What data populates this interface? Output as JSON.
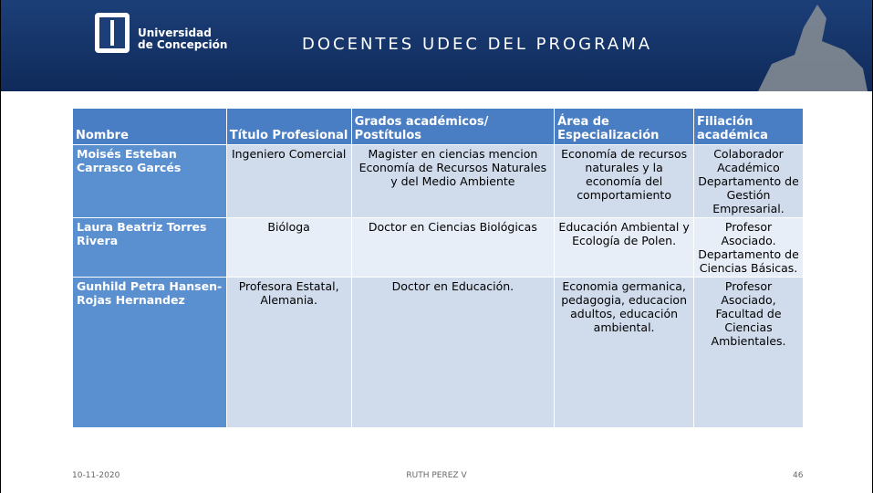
{
  "header": {
    "logo": [
      "Universidad",
      "de Concepción"
    ],
    "title": "DOCENTES UDEC DEL PROGRAMA"
  },
  "table": {
    "columns": [
      "Nombre",
      "Título Profesional",
      "Grados académicos/ Postítulos",
      "Área de Especialización",
      "Filiación académica"
    ],
    "rows": [
      [
        "Moisés Esteban Carrasco Garcés",
        "Ingeniero Comercial",
        "Magister en  ciencias mencion Economía de Recursos Naturales y del Medio Ambiente",
        "Economía de recursos naturales y la economía del comportamiento",
        "Colaborador Académico Departamento de Gestión Empresarial."
      ],
      [
        "Laura Beatriz Torres Rivera",
        "Bióloga",
        "Doctor en Ciencias Biológicas",
        "Educación Ambiental y Ecología de Polen.",
        "Profesor Asociado. Departamento de Ciencias Básicas."
      ],
      [
        "Gunhild Petra Hansen-Rojas Hernandez",
        "Profesora Estatal, Alemania.",
        "Doctor en Educación.",
        "Economia germanica, pedagogia, educacion adultos, educación ambiental.",
        "Profesor Asociado, Facultad de Ciencias Ambientales."
      ]
    ]
  },
  "footer": {
    "date": "10-11-2020",
    "author": "RUTH PEREZ V",
    "page": "46"
  }
}
